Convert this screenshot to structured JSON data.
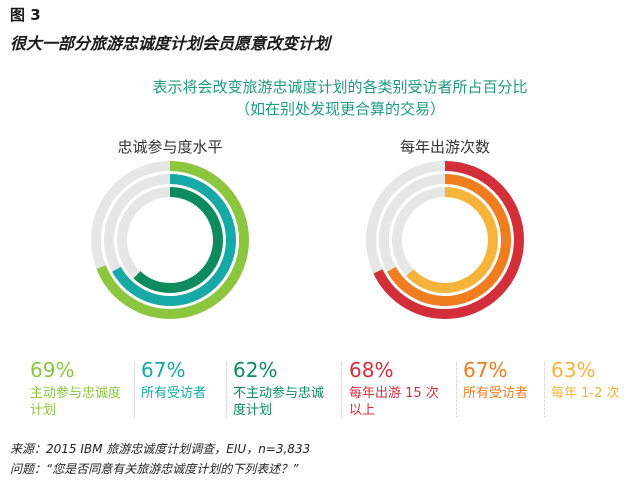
{
  "figure": {
    "number": "图 3",
    "title": "很大一部分旅游忠诚度计划会员愿意改变计划",
    "subtitle_line1": "表示将会改变旅游忠诚度计划的各类别受访者所占百分比",
    "subtitle_line2": "（如在别处发现更合算的交易）"
  },
  "chart_data": [
    {
      "type": "donut",
      "title": "忠诚参与度水平",
      "track_color": "#e6e6e6",
      "series": [
        {
          "label_line1": "主动参与忠诚度",
          "label_line2": "计划",
          "value": 69,
          "value_text": "69%",
          "color": "#8cc63f"
        },
        {
          "label_line1": "所有受访者",
          "label_line2": "",
          "value": 67,
          "value_text": "67%",
          "color": "#16a9a5"
        },
        {
          "label_line1": "不主动参与忠诚",
          "label_line2": "度计划",
          "value": 62,
          "value_text": "62%",
          "color": "#0e8a5f"
        }
      ]
    },
    {
      "type": "donut",
      "title": "每年出游次数",
      "track_color": "#e6e6e6",
      "series": [
        {
          "label_line1": "每年出游 15 次",
          "label_line2": "以上",
          "value": 68,
          "value_text": "68%",
          "color": "#d32f3a"
        },
        {
          "label_line1": "所有受访者",
          "label_line2": "",
          "value": 67,
          "value_text": "67%",
          "color": "#f07d1f"
        },
        {
          "label_line1": "每年 1-2 次",
          "label_line2": "",
          "value": 63,
          "value_text": "63%",
          "color": "#f6b43a"
        }
      ]
    }
  ],
  "footer": {
    "source": "来源：2015 IBM 旅游忠诚度计划调查，EIU，n=3,833",
    "question": "问题：“您是否同意有关旅游忠诚度计划的下列表述？”"
  }
}
